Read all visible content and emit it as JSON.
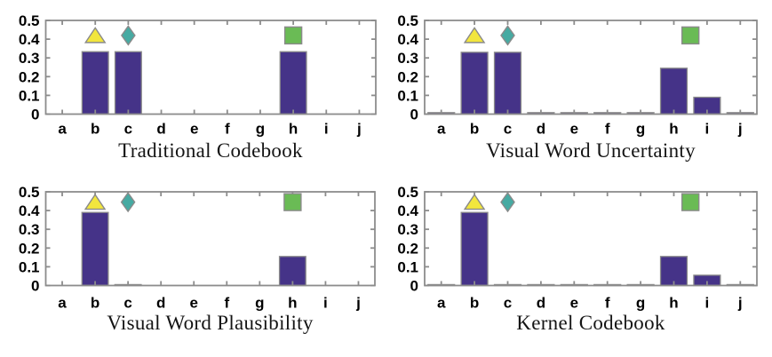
{
  "style": {
    "background": "#ffffff",
    "bar_fill": "#453388",
    "bar_edge": "#8a8a8a",
    "axis_color": "#8c8c8c",
    "tick_label_color": "#000000",
    "title_color": "#141414",
    "marker_edge": "#8a8a8a",
    "marker_colors": {
      "triangle": "#f2e63d",
      "diamond": "#46aaa2",
      "square": "#6abb55"
    }
  },
  "chart_data": [
    {
      "type": "bar",
      "title": "Traditional Codebook",
      "categories": [
        "a",
        "b",
        "c",
        "d",
        "e",
        "f",
        "g",
        "h",
        "i",
        "j"
      ],
      "values": [
        0,
        0.333,
        0.333,
        0,
        0,
        0,
        0,
        0.333,
        0,
        0
      ],
      "xlabel": "",
      "ylabel": "",
      "ylim": [
        0,
        0.5
      ],
      "yticks": [
        "0",
        "0.1",
        "0.2",
        "0.3",
        "0.4",
        "0.5"
      ],
      "grid": false,
      "legend": "none",
      "markers": [
        {
          "shape": "triangle",
          "category": "b",
          "x_offset": 0,
          "y": 0.42
        },
        {
          "shape": "diamond",
          "category": "c",
          "x_offset": 0,
          "y": 0.42
        },
        {
          "shape": "square",
          "category": "h",
          "x_offset": 0,
          "y": 0.42
        }
      ]
    },
    {
      "type": "bar",
      "title": "Visual Word Uncertainty",
      "categories": [
        "a",
        "b",
        "c",
        "d",
        "e",
        "f",
        "g",
        "h",
        "i",
        "j"
      ],
      "values": [
        0.008,
        0.33,
        0.33,
        0.008,
        0.008,
        0.008,
        0.008,
        0.245,
        0.09,
        0.008
      ],
      "xlabel": "",
      "ylabel": "",
      "ylim": [
        0,
        0.5
      ],
      "yticks": [
        "0",
        "0.1",
        "0.2",
        "0.3",
        "0.4",
        "0.5"
      ],
      "grid": false,
      "legend": "none",
      "markers": [
        {
          "shape": "triangle",
          "category": "b",
          "x_offset": 0,
          "y": 0.42
        },
        {
          "shape": "diamond",
          "category": "c",
          "x_offset": 0,
          "y": 0.42
        },
        {
          "shape": "square",
          "category": "h",
          "x_offset": 0.5,
          "y": 0.42
        }
      ]
    },
    {
      "type": "bar",
      "title": "Visual Word Plausibility",
      "categories": [
        "a",
        "b",
        "c",
        "d",
        "e",
        "f",
        "g",
        "h",
        "i",
        "j"
      ],
      "values": [
        0,
        0.39,
        0.005,
        0,
        0,
        0,
        0,
        0.155,
        0,
        0
      ],
      "xlabel": "",
      "ylabel": "",
      "ylim": [
        0,
        0.5
      ],
      "yticks": [
        "0",
        "0.1",
        "0.2",
        "0.3",
        "0.4",
        "0.5"
      ],
      "grid": false,
      "legend": "none",
      "markers": [
        {
          "shape": "triangle",
          "category": "b",
          "x_offset": 0,
          "y": 0.445
        },
        {
          "shape": "diamond",
          "category": "c",
          "x_offset": 0,
          "y": 0.445
        },
        {
          "shape": "square",
          "category": "h",
          "x_offset": 0,
          "y": 0.445
        }
      ]
    },
    {
      "type": "bar",
      "title": "Kernel Codebook",
      "categories": [
        "a",
        "b",
        "c",
        "d",
        "e",
        "f",
        "g",
        "h",
        "i",
        "j"
      ],
      "values": [
        0.005,
        0.39,
        0.005,
        0.005,
        0.005,
        0.005,
        0.005,
        0.155,
        0.055,
        0.005
      ],
      "xlabel": "",
      "ylabel": "",
      "ylim": [
        0,
        0.5
      ],
      "yticks": [
        "0",
        "0.1",
        "0.2",
        "0.3",
        "0.4",
        "0.5"
      ],
      "grid": false,
      "legend": "none",
      "markers": [
        {
          "shape": "triangle",
          "category": "b",
          "x_offset": 0,
          "y": 0.445
        },
        {
          "shape": "diamond",
          "category": "c",
          "x_offset": 0,
          "y": 0.445
        },
        {
          "shape": "square",
          "category": "h",
          "x_offset": 0.5,
          "y": 0.445
        }
      ]
    }
  ]
}
